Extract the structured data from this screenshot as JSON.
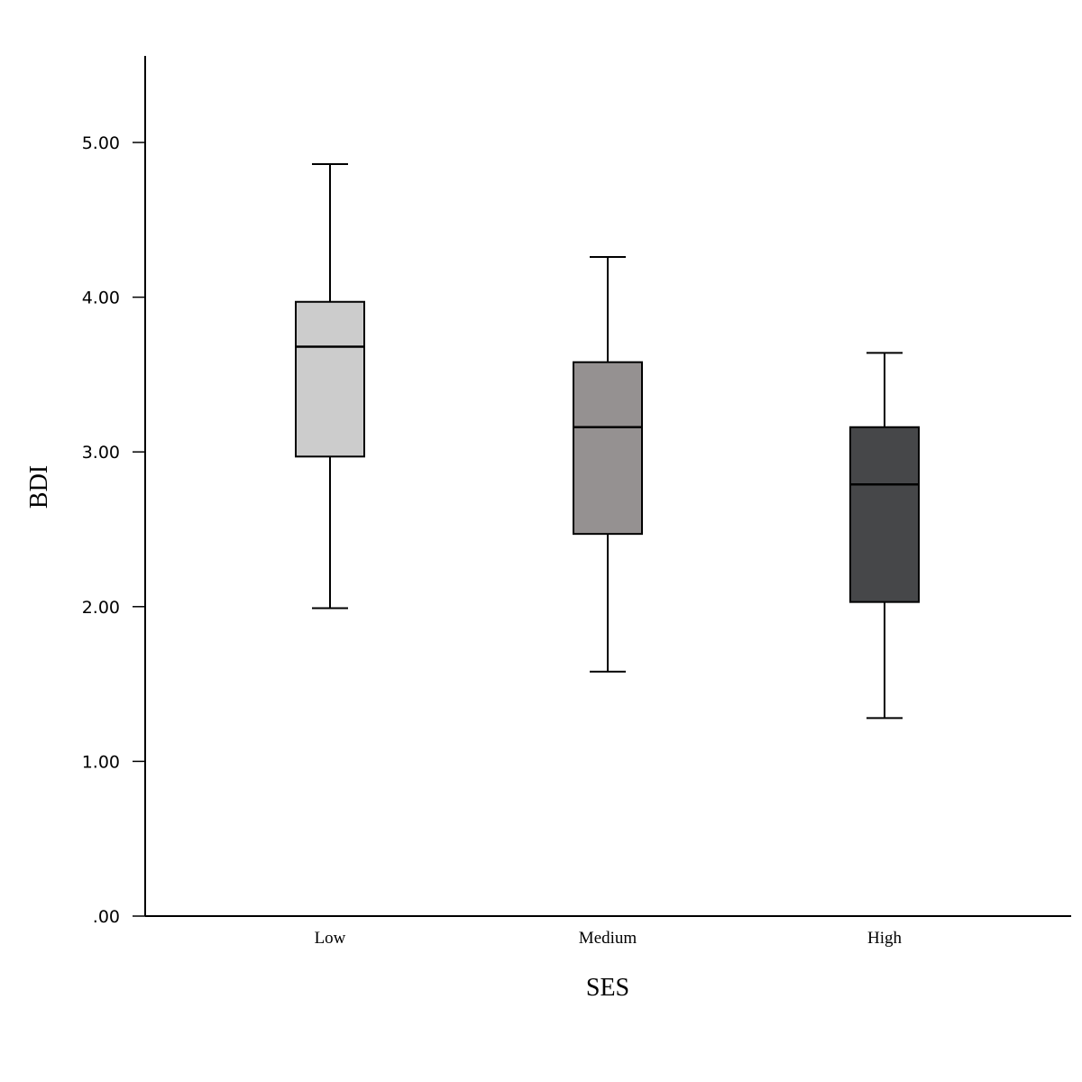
{
  "chart_data": {
    "type": "boxplot",
    "title": "",
    "xlabel": "SES",
    "ylabel": "BDI",
    "ylim": [
      0,
      5.55
    ],
    "y_ticks": [
      {
        "value": 0,
        "label": ".00"
      },
      {
        "value": 1,
        "label": "1.00"
      },
      {
        "value": 2,
        "label": "2.00"
      },
      {
        "value": 3,
        "label": "3.00"
      },
      {
        "value": 4,
        "label": "4.00"
      },
      {
        "value": 5,
        "label": "5.00"
      }
    ],
    "grid": false,
    "categories": [
      "Low",
      "Medium",
      "High"
    ],
    "boxes": [
      {
        "category": "Low",
        "min": 1.99,
        "q1": 2.97,
        "median": 3.68,
        "q3": 3.97,
        "max": 4.86,
        "color": "#cccccc"
      },
      {
        "category": "Medium",
        "min": 1.58,
        "q1": 2.47,
        "median": 3.16,
        "q3": 3.58,
        "max": 4.26,
        "color": "#959191"
      },
      {
        "category": "High",
        "min": 1.28,
        "q1": 2.03,
        "median": 2.79,
        "q3": 3.16,
        "max": 3.64,
        "color": "#464749"
      }
    ]
  }
}
